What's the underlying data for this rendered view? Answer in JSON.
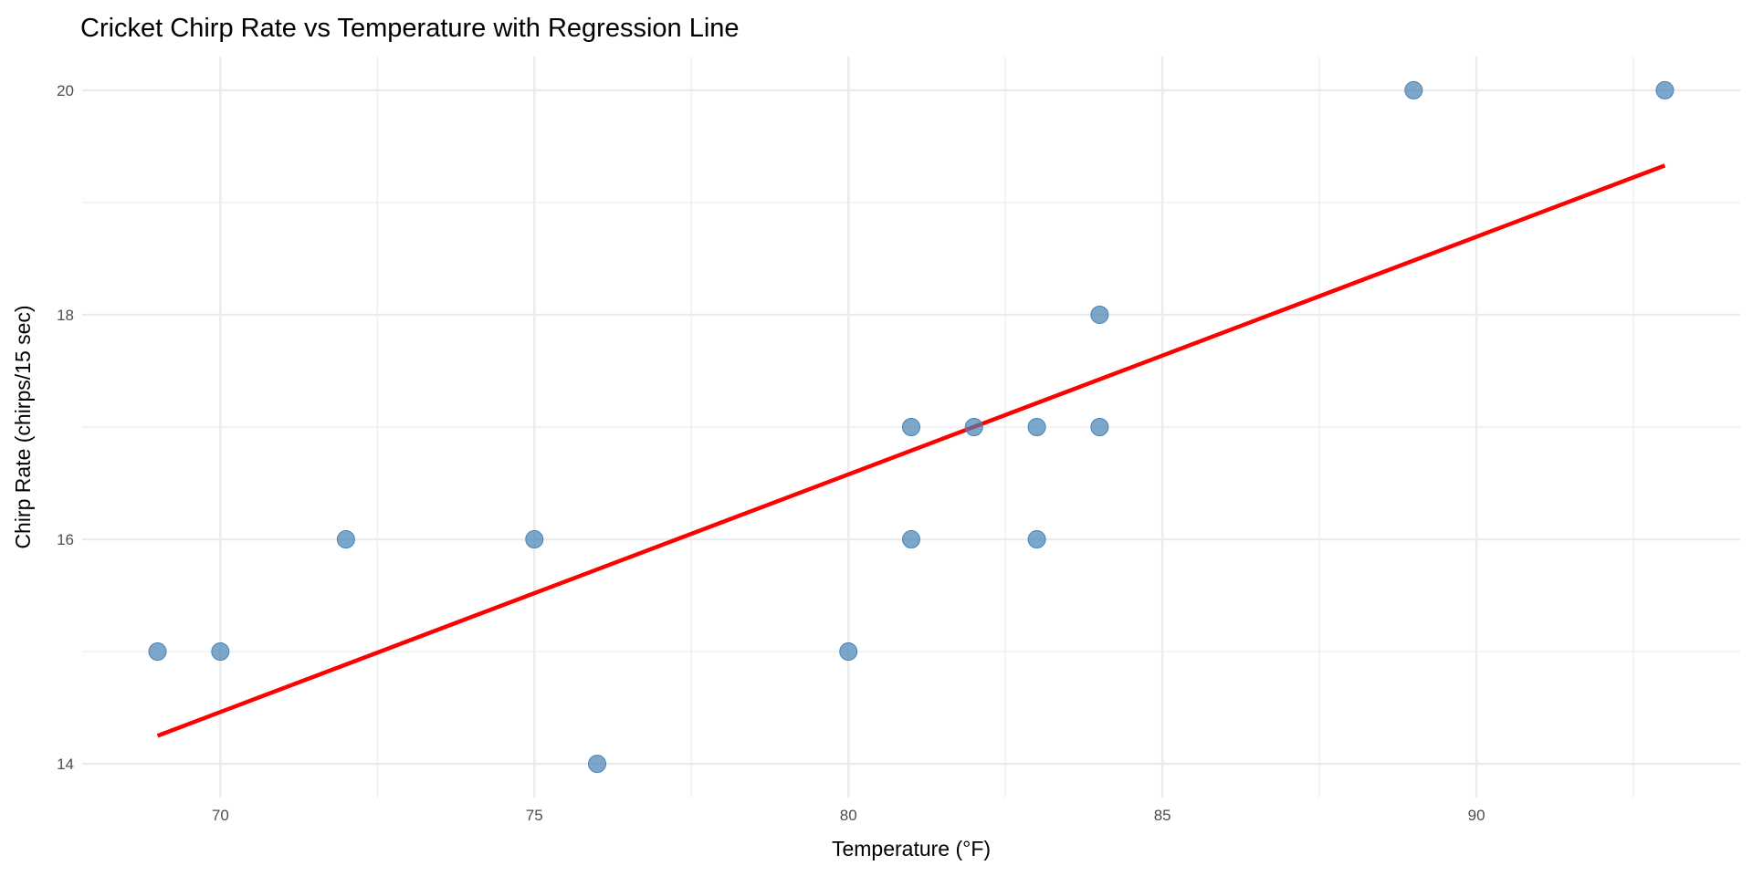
{
  "chart_data": {
    "type": "scatter",
    "title": "Cricket Chirp Rate vs Temperature with Regression Line",
    "xlabel": "Temperature (°F)",
    "ylabel": "Chirp Rate (chirps/15 sec)",
    "xlim": [
      67.8,
      94.2
    ],
    "ylim": [
      13.7,
      20.3
    ],
    "xticks": [
      70,
      75,
      80,
      85,
      90
    ],
    "yticks": [
      14,
      16,
      18,
      20
    ],
    "grid": true,
    "points": [
      {
        "x": 69,
        "y": 15
      },
      {
        "x": 70,
        "y": 15
      },
      {
        "x": 72,
        "y": 16
      },
      {
        "x": 75,
        "y": 16
      },
      {
        "x": 76,
        "y": 14
      },
      {
        "x": 80,
        "y": 15
      },
      {
        "x": 81,
        "y": 17
      },
      {
        "x": 81,
        "y": 16
      },
      {
        "x": 82,
        "y": 17
      },
      {
        "x": 83,
        "y": 17
      },
      {
        "x": 83,
        "y": 16
      },
      {
        "x": 84,
        "y": 18
      },
      {
        "x": 84,
        "y": 17
      },
      {
        "x": 89,
        "y": 20
      },
      {
        "x": 93,
        "y": 20
      }
    ],
    "regression_line": {
      "x": [
        69,
        93
      ],
      "y": [
        14.25,
        19.33
      ]
    },
    "colors": {
      "points": "#4682b4",
      "line": "#ff0000",
      "grid": "#ebebeb"
    }
  }
}
